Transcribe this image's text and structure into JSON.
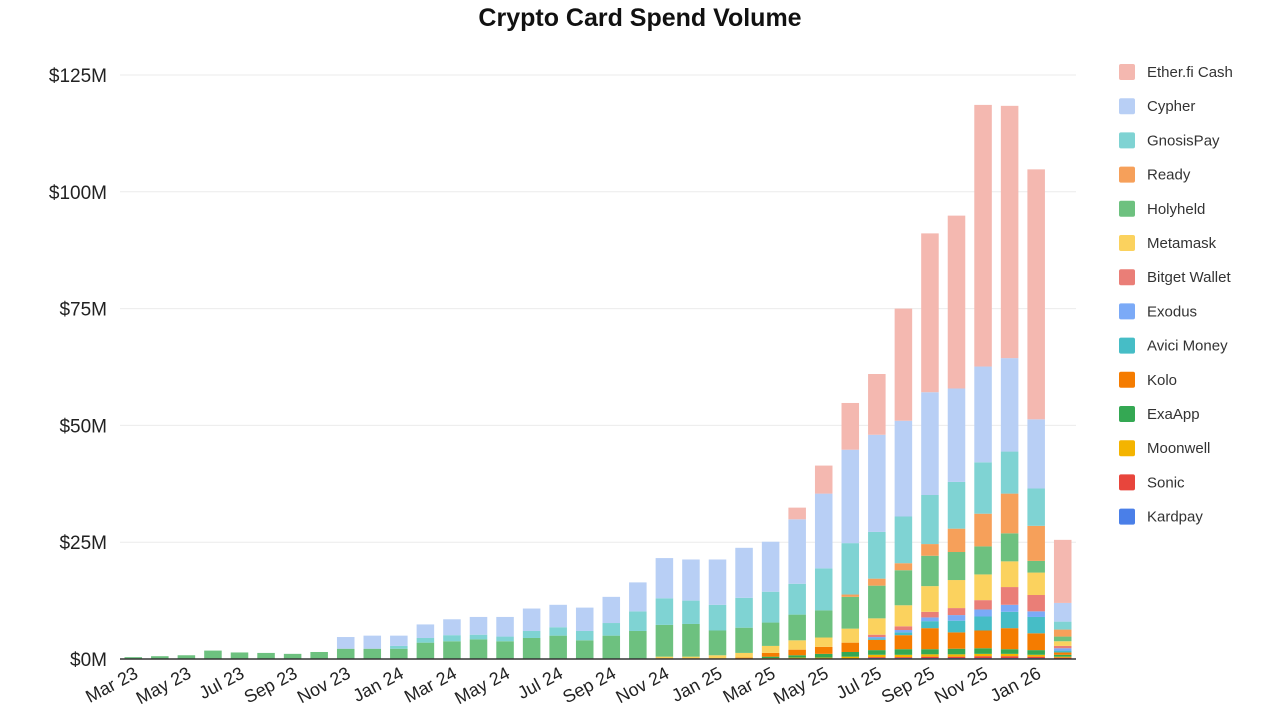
{
  "chart_data": {
    "type": "bar",
    "stacked": true,
    "title": "Crypto Card Spend Volume",
    "xlabel": "",
    "ylabel": "",
    "ylim": [
      0,
      125
    ],
    "y_ticks": [
      0,
      25,
      50,
      75,
      100,
      125
    ],
    "y_tick_labels": [
      "$0M",
      "$25M",
      "$50M",
      "$75M",
      "$100M",
      "$125M"
    ],
    "legend_position": "right",
    "categories": [
      "Mar 23",
      "Apr 23",
      "May 23",
      "Jun 23",
      "Jul 23",
      "Aug 23",
      "Sep 23",
      "Oct 23",
      "Nov 23",
      "Dec 23",
      "Jan 24",
      "Feb 24",
      "Mar 24",
      "Apr 24",
      "May 24",
      "Jun 24",
      "Jul 24",
      "Aug 24",
      "Sep 24",
      "Oct 24",
      "Nov 24",
      "Dec 24",
      "Jan 25",
      "Feb 25",
      "Mar 25",
      "Apr 25",
      "May 25",
      "Jun 25",
      "Jul 25",
      "Aug 25",
      "Sep 25",
      "Oct 25",
      "Nov 25",
      "Dec 25",
      "Jan 26",
      "Feb 26"
    ],
    "x_tick_labels": [
      "Mar 23",
      "May 23",
      "Jul 23",
      "Sep 23",
      "Nov 23",
      "Jan 24",
      "Mar 24",
      "May 24",
      "Jul 24",
      "Sep 24",
      "Nov 24",
      "Jan 25",
      "Mar 25",
      "May 25",
      "Jul 25",
      "Sep 25",
      "Nov 25",
      "Jan 26"
    ],
    "series": [
      {
        "name": "Kardpay",
        "color": "#4a7fe8",
        "values": [
          0,
          0,
          0,
          0,
          0,
          0,
          0,
          0,
          0,
          0,
          0,
          0,
          0,
          0,
          0,
          0,
          0,
          0,
          0,
          0,
          0,
          0,
          0,
          0,
          0,
          0,
          0,
          0,
          0.2,
          0.2,
          0.2,
          0.2,
          0.2,
          0.2,
          0.2,
          0.1
        ]
      },
      {
        "name": "Sonic",
        "color": "#e8453c",
        "values": [
          0,
          0,
          0,
          0,
          0,
          0,
          0,
          0,
          0,
          0,
          0,
          0,
          0,
          0,
          0,
          0,
          0,
          0,
          0,
          0,
          0,
          0,
          0,
          0,
          0,
          0,
          0,
          0.1,
          0.2,
          0.2,
          0.3,
          0.3,
          0.4,
          0.4,
          0.3,
          0.2
        ]
      },
      {
        "name": "Moonwell",
        "color": "#f4b400",
        "values": [
          0,
          0,
          0,
          0,
          0,
          0,
          0,
          0,
          0,
          0,
          0,
          0,
          0,
          0,
          0,
          0,
          0,
          0,
          0,
          0,
          0,
          0,
          0,
          0,
          0.2,
          0.3,
          0.3,
          0.4,
          0.5,
          0.5,
          0.5,
          0.5,
          0.5,
          0.5,
          0.4,
          0.2
        ]
      },
      {
        "name": "ExaApp",
        "color": "#34a853",
        "values": [
          0,
          0,
          0,
          0,
          0,
          0,
          0,
          0,
          0,
          0,
          0,
          0,
          0,
          0,
          0,
          0,
          0,
          0,
          0,
          0,
          0,
          0,
          0,
          0,
          0.3,
          0.5,
          0.8,
          1.0,
          1.0,
          1.2,
          1.1,
          1.2,
          1.2,
          1.0,
          1.0,
          0.4
        ]
      },
      {
        "name": "Kolo",
        "color": "#f57c00",
        "values": [
          0,
          0,
          0,
          0,
          0,
          0,
          0,
          0,
          0,
          0,
          0,
          0,
          0,
          0,
          0,
          0,
          0,
          0,
          0,
          0,
          0,
          0,
          0,
          0.3,
          0.8,
          1.2,
          1.5,
          2.0,
          2.2,
          3.0,
          4.5,
          3.5,
          3.8,
          4.5,
          3.6,
          0.5
        ]
      },
      {
        "name": "Avici Money",
        "color": "#46bdc6",
        "values": [
          0,
          0,
          0,
          0,
          0,
          0,
          0,
          0,
          0,
          0,
          0,
          0,
          0,
          0,
          0,
          0,
          0,
          0,
          0,
          0,
          0,
          0,
          0,
          0,
          0,
          0,
          0,
          0,
          0.3,
          0.6,
          1.5,
          2.5,
          3.0,
          3.5,
          3.5,
          0.4
        ]
      },
      {
        "name": "Exodus",
        "color": "#7baaf7",
        "values": [
          0,
          0,
          0,
          0,
          0,
          0,
          0,
          0,
          0,
          0,
          0,
          0,
          0,
          0,
          0,
          0,
          0,
          0,
          0,
          0,
          0,
          0,
          0,
          0,
          0,
          0,
          0,
          0,
          0.3,
          0.5,
          0.8,
          1.2,
          1.5,
          1.5,
          1.2,
          0.5
        ]
      },
      {
        "name": "Bitget Wallet",
        "color": "#ea7e77",
        "values": [
          0,
          0,
          0,
          0,
          0,
          0,
          0,
          0,
          0,
          0,
          0,
          0,
          0,
          0,
          0,
          0,
          0,
          0,
          0,
          0,
          0,
          0,
          0,
          0,
          0,
          0,
          0,
          0,
          0.5,
          0.8,
          1.2,
          1.5,
          2.0,
          3.8,
          3.5,
          0.5
        ]
      },
      {
        "name": "Metamask",
        "color": "#fbd25e",
        "values": [
          0,
          0,
          0,
          0,
          0,
          0,
          0,
          0,
          0,
          0,
          0,
          0,
          0,
          0,
          0,
          0,
          0,
          0,
          0,
          0,
          0.5,
          0.5,
          0.8,
          1.0,
          1.5,
          2.0,
          2.0,
          3.0,
          3.5,
          4.5,
          5.5,
          6.0,
          5.5,
          5.5,
          4.8,
          1.0
        ]
      },
      {
        "name": "Holyheld",
        "color": "#6dc17f",
        "values": [
          0.4,
          0.6,
          0.8,
          1.8,
          1.4,
          1.3,
          1.1,
          1.5,
          2.2,
          2.2,
          2.2,
          3.5,
          3.8,
          4.2,
          3.8,
          4.5,
          5.0,
          4.0,
          5.0,
          6.0,
          6.8,
          7.0,
          5.3,
          5.4,
          5.0,
          5.5,
          5.8,
          6.8,
          7.0,
          7.5,
          6.5,
          6.0,
          6.0,
          6.0,
          2.5,
          1.0
        ]
      },
      {
        "name": "Ready",
        "color": "#f6a05a",
        "values": [
          0,
          0,
          0,
          0,
          0,
          0,
          0,
          0,
          0,
          0,
          0,
          0,
          0,
          0,
          0,
          0,
          0,
          0,
          0,
          0,
          0,
          0,
          0,
          0,
          0,
          0,
          0,
          0.5,
          1.5,
          1.5,
          2.5,
          5.0,
          7.0,
          8.5,
          7.5,
          1.5
        ]
      },
      {
        "name": "GnosisPay",
        "color": "#7fd3d3",
        "values": [
          0,
          0,
          0,
          0,
          0,
          0,
          0,
          0,
          0,
          0,
          0.6,
          1.0,
          1.3,
          1.0,
          1.0,
          1.5,
          1.8,
          2.0,
          2.7,
          4.2,
          5.7,
          5.0,
          5.5,
          6.4,
          6.6,
          6.6,
          9.0,
          11.0,
          10.0,
          10.0,
          10.5,
          10.0,
          11.0,
          9.0,
          8.0,
          1.7
        ]
      },
      {
        "name": "Cypher",
        "color": "#b8cff5",
        "values": [
          0,
          0,
          0,
          0,
          0,
          0,
          0,
          0,
          2.5,
          2.8,
          2.2,
          2.9,
          3.4,
          3.8,
          4.2,
          4.8,
          4.8,
          5.0,
          5.6,
          6.2,
          8.6,
          8.8,
          9.7,
          10.7,
          10.7,
          13.8,
          16.0,
          20.0,
          20.8,
          20.5,
          22.0,
          20.0,
          20.5,
          20.0,
          14.8,
          4.0
        ]
      },
      {
        "name": "Ether.fi Cash",
        "color": "#f4b8b0",
        "values": [
          0,
          0,
          0,
          0,
          0,
          0,
          0,
          0,
          0,
          0,
          0,
          0,
          0,
          0,
          0,
          0,
          0,
          0,
          0,
          0,
          0,
          0,
          0,
          0,
          0,
          2.5,
          6.0,
          10.0,
          13.0,
          24.0,
          34.0,
          37.0,
          56.0,
          54.0,
          53.5,
          13.5
        ]
      }
    ],
    "legend_order": [
      "Ether.fi Cash",
      "Cypher",
      "GnosisPay",
      "Ready",
      "Holyheld",
      "Metamask",
      "Bitget Wallet",
      "Exodus",
      "Avici Money",
      "Kolo",
      "ExaApp",
      "Moonwell",
      "Sonic",
      "Kardpay"
    ]
  }
}
